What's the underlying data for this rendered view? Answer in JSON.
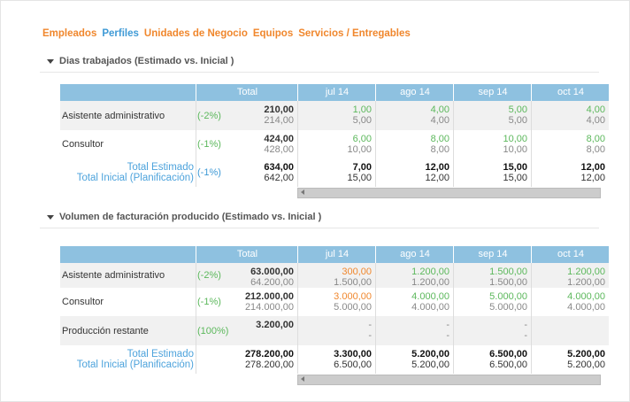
{
  "tabs": [
    "Empleados",
    "Perfiles",
    "Unidades de Negocio",
    "Equipos",
    "Servicios / Entregables"
  ],
  "sections": [
    {
      "title": "Dias trabajados (Estimado vs. Inicial )",
      "header": [
        "Total",
        "jul 14",
        "ago 14",
        "sep 14",
        "oct 14"
      ],
      "rows": [
        {
          "label": "Asistente administrativo",
          "pct": "(-2%)",
          "cells": [
            [
              "210,00",
              "214,00"
            ],
            [
              "1,00",
              "5,00"
            ],
            [
              "4,00",
              "4,00"
            ],
            [
              "5,00",
              "5,00"
            ],
            [
              "4,00",
              "4,00"
            ]
          ]
        },
        {
          "label": "Consultor",
          "pct": "(-1%)",
          "cells": [
            [
              "424,00",
              "428,00"
            ],
            [
              "6,00",
              "10,00"
            ],
            [
              "8,00",
              "8,00"
            ],
            [
              "10,00",
              "10,00"
            ],
            [
              "8,00",
              "8,00"
            ]
          ]
        }
      ],
      "total": {
        "label_est": "Total Estimado",
        "label_ini": "Total Inicial (Planificación)",
        "pct": "(-1%)",
        "cells": [
          [
            "634,00",
            "642,00"
          ],
          [
            "7,00",
            "15,00"
          ],
          [
            "12,00",
            "12,00"
          ],
          [
            "15,00",
            "15,00"
          ],
          [
            "12,00",
            "12,00"
          ]
        ]
      }
    },
    {
      "title": "Volumen de facturación producido (Estimado vs. Inicial )",
      "header": [
        "Total",
        "jul 14",
        "ago 14",
        "sep 14",
        "oct 14"
      ],
      "rows": [
        {
          "label": "Asistente administrativo",
          "pct": "(-2%)",
          "cells": [
            [
              "63.000,00",
              "64.200,00"
            ],
            [
              "300,00",
              "1.500,00"
            ],
            [
              "1.200,00",
              "1.200,00"
            ],
            [
              "1.500,00",
              "1.500,00"
            ],
            [
              "1.200,00",
              "1.200,00"
            ]
          ]
        },
        {
          "label": "Consultor",
          "pct": "(-1%)",
          "cells": [
            [
              "212.000,00",
              "214.000,00"
            ],
            [
              "3.000,00",
              "5.000,00"
            ],
            [
              "4.000,00",
              "4.000,00"
            ],
            [
              "5.000,00",
              "5.000,00"
            ],
            [
              "4.000,00",
              "4.000,00"
            ]
          ]
        },
        {
          "label": "Producción restante",
          "pct": "(100%)",
          "cells": [
            [
              "3.200,00"
            ],
            [
              "-",
              "-"
            ],
            [
              "-",
              "-"
            ],
            [
              "-",
              "-"
            ],
            []
          ]
        }
      ],
      "total": {
        "label_est": "Total Estimado",
        "label_ini": "Total Inicial (Planificación)",
        "cells": [
          [
            "278.200,00",
            "278.200,00"
          ],
          [
            "3.300,00",
            "6.500,00"
          ],
          [
            "5.200,00",
            "5.200,00"
          ],
          [
            "6.500,00",
            "6.500,00"
          ],
          [
            "5.200,00",
            "5.200,00"
          ]
        ]
      }
    }
  ]
}
